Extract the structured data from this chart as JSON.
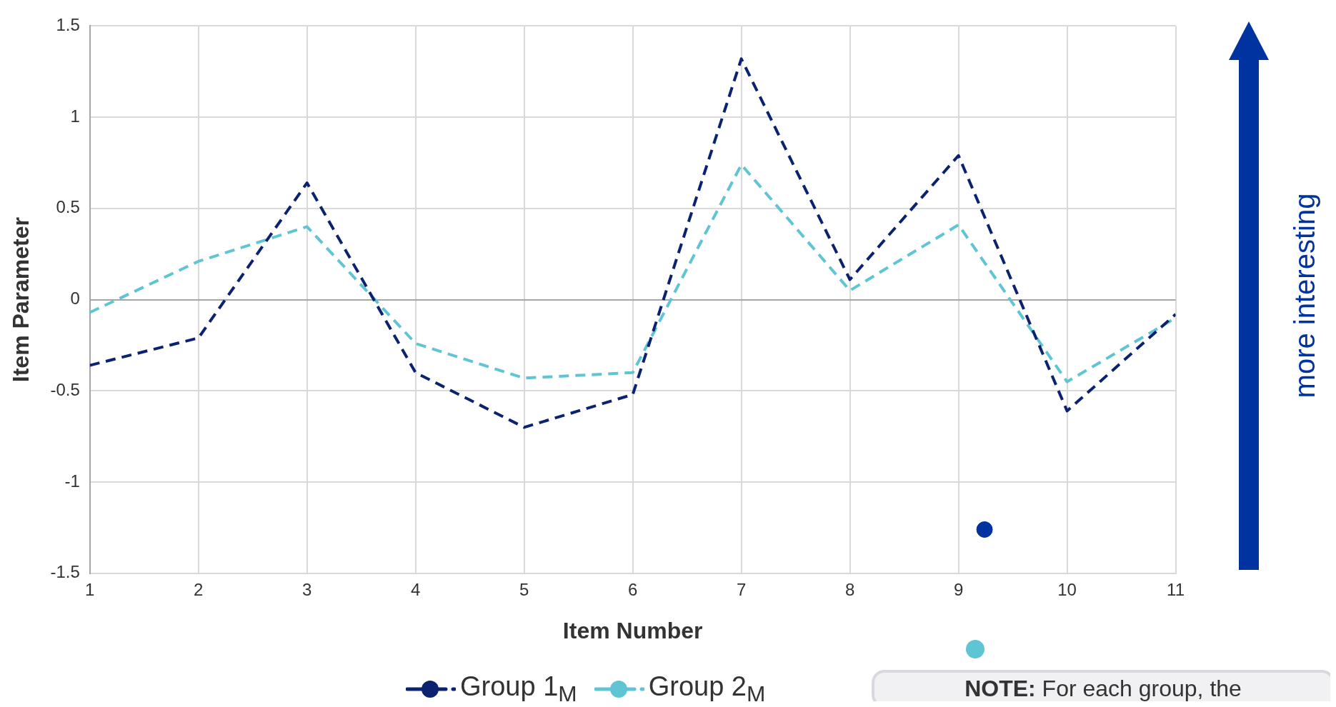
{
  "chart_data": {
    "type": "line",
    "xlabel": "Item Number",
    "ylabel": "Item Parameter",
    "x": [
      1,
      2,
      3,
      4,
      5,
      6,
      7,
      8,
      9,
      10,
      11
    ],
    "xlim": [
      1,
      11
    ],
    "xticks": [
      1,
      2,
      3,
      4,
      5,
      6,
      7,
      8,
      9,
      10,
      11
    ],
    "ylim": [
      -1.5,
      1.5
    ],
    "yticks": [
      -1.5,
      -1,
      -0.5,
      0,
      0.5,
      1,
      1.5
    ],
    "grid": true,
    "legend": "bottom",
    "line_style": "dashed",
    "marker": "none",
    "series": [
      {
        "name": "Group 1$_{M}$",
        "color": "#0b2270",
        "values": [
          -0.36,
          -0.21,
          0.64,
          -0.4,
          -0.7,
          -0.52,
          1.32,
          0.11,
          0.79,
          -0.61,
          -0.08
        ]
      },
      {
        "name": "Group 2$_{M}$",
        "color": "#5fc4d4",
        "values": [
          -0.07,
          0.21,
          0.4,
          -0.24,
          -0.43,
          -0.4,
          0.74,
          0.05,
          0.41,
          -0.45,
          -0.1
        ]
      },
      {
        "type": "scatter",
        "color": "#0033a0",
        "x": [
          9.24
        ],
        "values": [
          -1.26
        ],
        "marker": "circle"
      }
    ],
    "annotations": [
      "more interesting",
      "NOTE: For each group, the"
    ]
  }
}
